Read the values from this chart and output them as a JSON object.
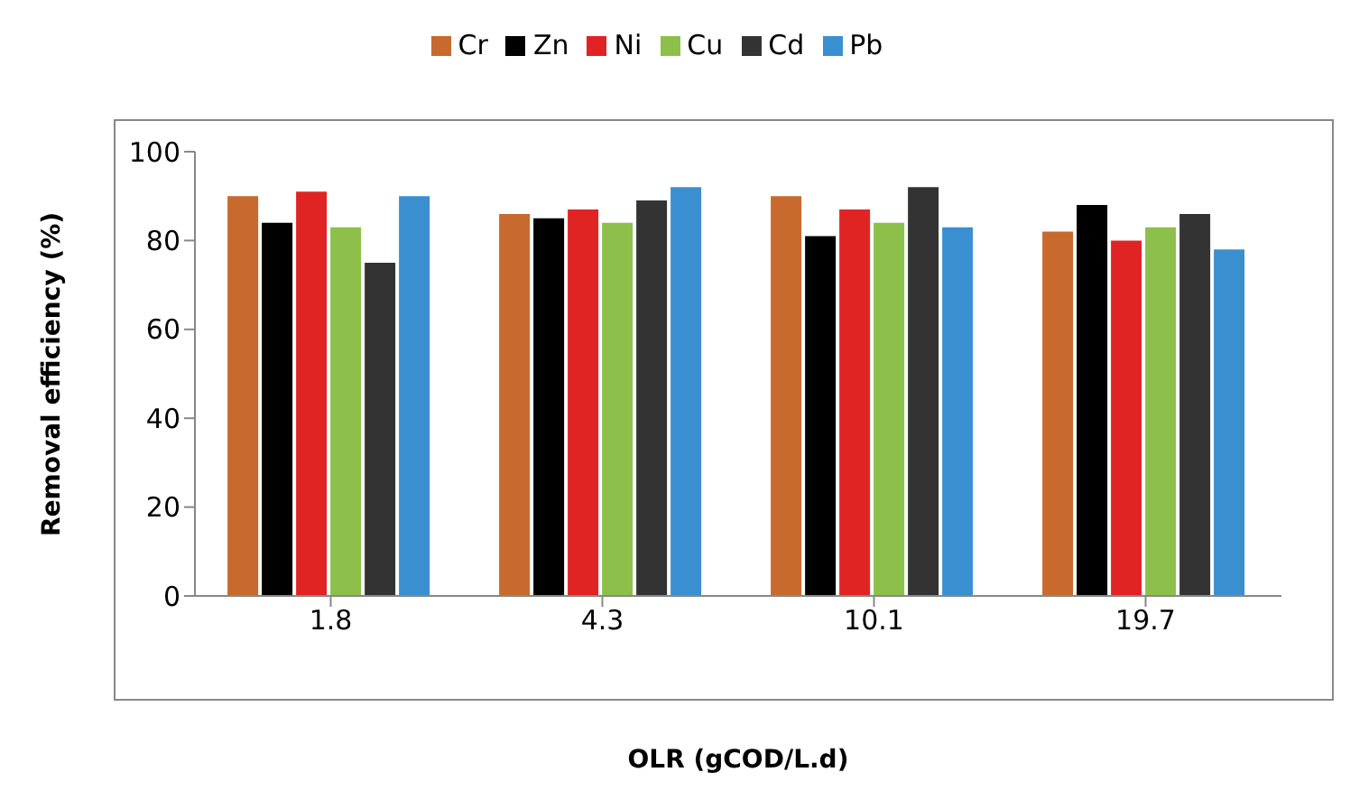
{
  "chart_data": {
    "type": "bar",
    "xlabel": "OLR (gCOD/L.d)",
    "ylabel": "Removal efficiency (%)",
    "categories": [
      "1.8",
      "4.3",
      "10.1",
      "19.7"
    ],
    "series": [
      {
        "name": "Cr",
        "color": "#c8692e",
        "values": [
          90,
          86,
          90,
          82
        ]
      },
      {
        "name": "Zn",
        "color": "#000000",
        "values": [
          84,
          85,
          81,
          88
        ]
      },
      {
        "name": "Ni",
        "color": "#e02424",
        "values": [
          91,
          87,
          87,
          80
        ]
      },
      {
        "name": "Cu",
        "color": "#8cc04a",
        "values": [
          83,
          84,
          84,
          83
        ]
      },
      {
        "name": "Cd",
        "color": "#333333",
        "values": [
          75,
          89,
          92,
          86
        ]
      },
      {
        "name": "Pb",
        "color": "#3a8fd0",
        "values": [
          90,
          92,
          83,
          78
        ]
      }
    ],
    "ylim": [
      0,
      100
    ],
    "yticks": [
      0,
      20,
      40,
      60,
      80,
      100
    ],
    "grid": false,
    "legend": "top"
  }
}
